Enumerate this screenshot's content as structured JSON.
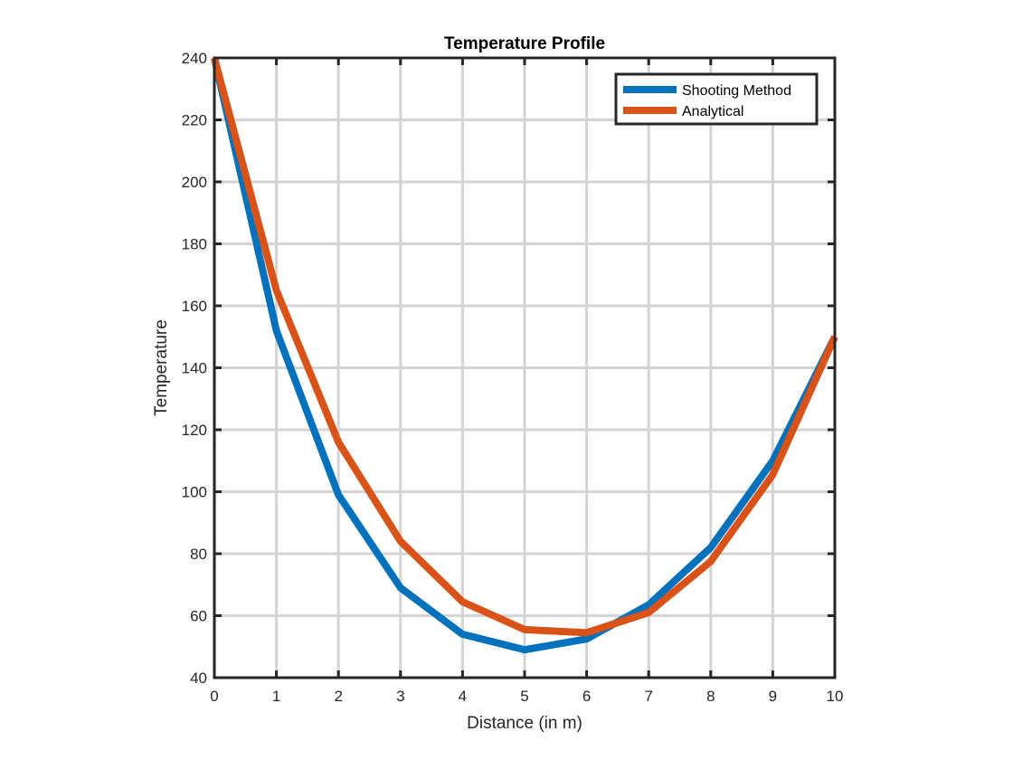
{
  "chart_data": {
    "type": "line",
    "title": "Temperature Profile",
    "xlabel": "Distance (in m)",
    "ylabel": "Temperature",
    "xlim": [
      0,
      10
    ],
    "ylim": [
      40,
      240
    ],
    "xticks": [
      0,
      1,
      2,
      3,
      4,
      5,
      6,
      7,
      8,
      9,
      10
    ],
    "yticks": [
      40,
      60,
      80,
      100,
      120,
      140,
      160,
      180,
      200,
      220,
      240
    ],
    "grid": true,
    "legend_position": "top-right",
    "x": [
      0,
      1,
      2,
      3,
      4,
      5,
      6,
      7,
      8,
      9,
      10
    ],
    "series": [
      {
        "name": "Shooting Method",
        "color": "#0072BD",
        "values": [
          240,
          152,
          99,
          69,
          54,
          49,
          52.5,
          63.5,
          82,
          110,
          150
        ]
      },
      {
        "name": "Analytical",
        "color": "#D95319",
        "values": [
          240,
          165,
          116,
          84,
          64.5,
          55.5,
          54.5,
          61,
          77.5,
          105.5,
          150
        ]
      }
    ]
  }
}
